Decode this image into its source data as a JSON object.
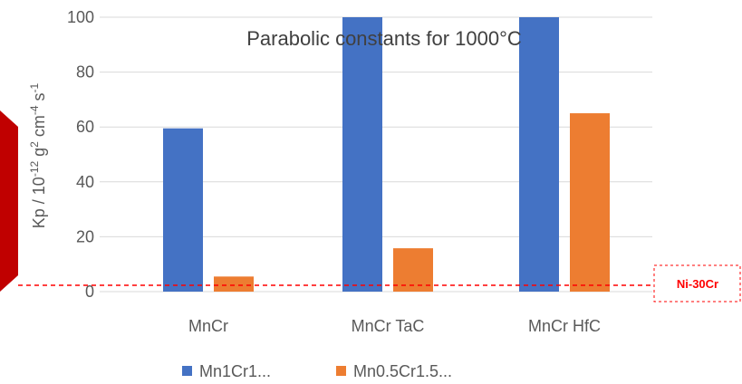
{
  "colors": {
    "series1": "#4472c4",
    "series2": "#ed7d31",
    "grid": "#d9d9d9",
    "reference": "#ff0000",
    "arrow": "#c00000"
  },
  "chart_data": {
    "type": "bar",
    "title": "Parabolic constants for 1000°C",
    "ylabel_parts": [
      "Kp / 10",
      "-12",
      " g",
      "2",
      " cm",
      "-4",
      " s",
      "-1"
    ],
    "xlabel": "",
    "categories": [
      "MnCr",
      "MnCr TaC",
      "MnCr HfC"
    ],
    "series": [
      {
        "name": "Mn1Cr1...",
        "values": [
          59.5,
          100,
          100
        ]
      },
      {
        "name": "Mn0.5Cr1.5...",
        "values": [
          5.5,
          15.8,
          65
        ]
      }
    ],
    "ylim": [
      0,
      100
    ],
    "yticks": [
      0,
      20,
      40,
      60,
      80,
      100
    ],
    "grid": true,
    "legend_position": "bottom",
    "reference_line": {
      "label": "Ni-30Cr",
      "value": 2.3
    }
  }
}
